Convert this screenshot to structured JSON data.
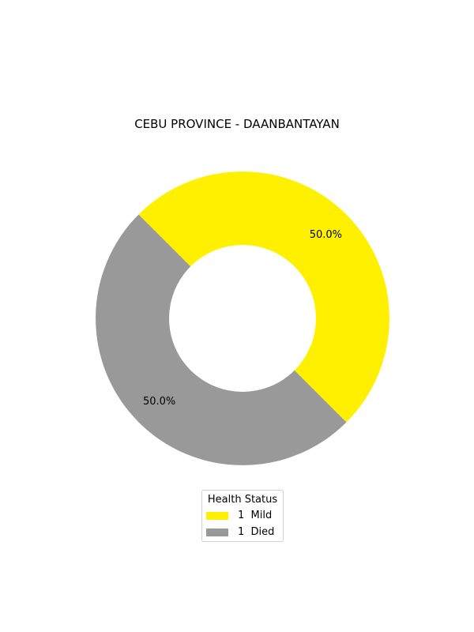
{
  "chart_data": {
    "type": "pie",
    "title": "CEBU PROVINCE - DAANBANTAYAN",
    "slices": [
      {
        "label": "Mild",
        "count": 1,
        "value": 50.0,
        "pct_label": "50.0%",
        "color": "#fff000"
      },
      {
        "label": "Died",
        "count": 1,
        "value": 50.0,
        "pct_label": "50.0%",
        "color": "#999999"
      }
    ],
    "legend": {
      "title": "Health Status",
      "placement": "bottom-center",
      "items": [
        {
          "count": "1",
          "label": "Mild",
          "color": "#fff000"
        },
        {
          "count": "1",
          "label": "Died",
          "color": "#999999"
        }
      ]
    }
  }
}
